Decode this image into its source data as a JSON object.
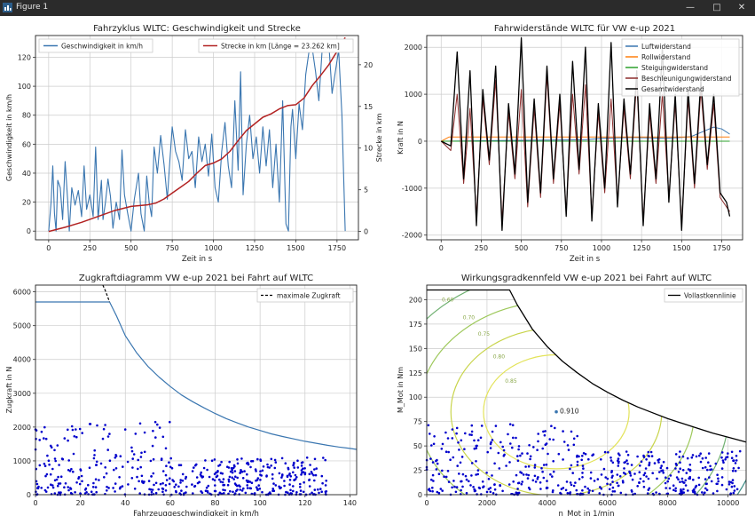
{
  "window": {
    "title": "Figure 1",
    "minimize": "—",
    "maximize": "□",
    "close": "✕"
  },
  "colors": {
    "blue": "#3a76b0",
    "red": "#b22222",
    "orange": "#ff7f0e",
    "green": "#2ca02c",
    "darkred": "#8c2c2c",
    "black": "#000000",
    "dots": "#0000cc",
    "grid": "#cccccc"
  },
  "chart_data": [
    {
      "id": "wltc",
      "type": "line",
      "title": "Fahrzyklus WLTC: Geschwindigkeit und Strecke",
      "xlabel": "Zeit in s",
      "ylabel": "Geschwindigkeit in km/h",
      "y2label": "Strecke in km",
      "xlim": [
        -80,
        1880
      ],
      "ylim": [
        -6,
        135
      ],
      "y2lim": [
        -1.0,
        23.5
      ],
      "xticks": [
        0,
        250,
        500,
        750,
        1000,
        1250,
        1500,
        1750
      ],
      "yticks": [
        0,
        20,
        40,
        60,
        80,
        100,
        120
      ],
      "y2ticks": [
        0,
        5,
        10,
        15,
        20
      ],
      "grid": true,
      "series": [
        {
          "name": "Geschwindigkeit in km/h",
          "axis": "left",
          "color": "#3a76b0",
          "x": [
            0,
            15,
            25,
            35,
            45,
            55,
            70,
            85,
            100,
            115,
            125,
            140,
            160,
            180,
            200,
            215,
            230,
            250,
            270,
            285,
            300,
            320,
            330,
            345,
            360,
            375,
            390,
            410,
            430,
            445,
            460,
            480,
            500,
            520,
            545,
            560,
            580,
            595,
            610,
            625,
            640,
            660,
            680,
            700,
            720,
            735,
            750,
            770,
            790,
            810,
            830,
            850,
            870,
            890,
            910,
            930,
            950,
            970,
            990,
            1010,
            1030,
            1050,
            1070,
            1090,
            1110,
            1130,
            1150,
            1165,
            1180,
            1200,
            1220,
            1240,
            1260,
            1280,
            1300,
            1320,
            1340,
            1360,
            1380,
            1400,
            1420,
            1440,
            1455,
            1470,
            1480,
            1500,
            1520,
            1540,
            1560,
            1580,
            1600,
            1620,
            1640,
            1660,
            1680,
            1700,
            1720,
            1740,
            1760,
            1780,
            1800
          ],
          "y": [
            0,
            20,
            45,
            12,
            0,
            35,
            30,
            8,
            48,
            22,
            0,
            30,
            18,
            28,
            10,
            45,
            15,
            25,
            10,
            58,
            8,
            35,
            8,
            20,
            36,
            24,
            2,
            20,
            8,
            56,
            25,
            12,
            0,
            22,
            40,
            12,
            0,
            38,
            20,
            10,
            58,
            40,
            66,
            46,
            22,
            48,
            72,
            55,
            48,
            35,
            70,
            50,
            55,
            30,
            65,
            48,
            60,
            38,
            67,
            30,
            20,
            55,
            75,
            45,
            30,
            90,
            42,
            110,
            25,
            60,
            80,
            50,
            65,
            40,
            72,
            45,
            70,
            30,
            60,
            20,
            90,
            5,
            0,
            72,
            84,
            50,
            88,
            70,
            108,
            124,
            126,
            110,
            90,
            125,
            128,
            130,
            95,
            110,
            125,
            80,
            0
          ]
        },
        {
          "name": "Strecke in km [Länge = 23.262 km]",
          "axis": "right",
          "color": "#b22222",
          "x": [
            0,
            100,
            200,
            300,
            400,
            500,
            550,
            600,
            650,
            700,
            750,
            800,
            850,
            900,
            950,
            1000,
            1050,
            1100,
            1150,
            1200,
            1250,
            1300,
            1350,
            1400,
            1450,
            1500,
            1550,
            1600,
            1650,
            1700,
            1750,
            1800
          ],
          "y": [
            0,
            0.5,
            1.1,
            1.8,
            2.5,
            3.0,
            3.1,
            3.2,
            3.4,
            3.9,
            4.6,
            5.3,
            6.0,
            7.0,
            7.9,
            8.2,
            8.7,
            9.6,
            10.9,
            12.1,
            12.9,
            13.7,
            14.1,
            14.7,
            15.1,
            15.2,
            16.0,
            17.5,
            18.7,
            20.0,
            21.6,
            23.262
          ]
        }
      ]
    },
    {
      "id": "widerstand",
      "type": "line",
      "title": "Fahrwiderstände WLTC für VW e-up 2021",
      "xlabel": "Zeit in s",
      "ylabel": "Kraft in N",
      "xlim": [
        -90,
        1880
      ],
      "ylim": [
        -2100,
        2250
      ],
      "xticks": [
        0,
        250,
        500,
        750,
        1000,
        1250,
        1500,
        1750
      ],
      "yticks": [
        -2000,
        -1000,
        0,
        1000,
        2000
      ],
      "grid": true,
      "series": [
        {
          "name": "Luftwiderstand",
          "color": "#3a76b0",
          "x": [
            0,
            300,
            600,
            900,
            1000,
            1200,
            1400,
            1500,
            1560,
            1700,
            1750,
            1800
          ],
          "y": [
            0,
            10,
            20,
            30,
            60,
            80,
            60,
            80,
            100,
            300,
            260,
            150
          ]
        },
        {
          "name": "Rollwiderstand",
          "color": "#ff7f0e",
          "x": [
            0,
            50,
            300,
            600,
            900,
            1200,
            1500,
            1800
          ],
          "y": [
            0,
            90,
            90,
            90,
            90,
            90,
            90,
            90
          ]
        },
        {
          "name": "Steigungwiderstand",
          "color": "#2ca02c",
          "x": [
            0,
            1800
          ],
          "y": [
            0,
            0
          ]
        },
        {
          "name": "Beschleunigungwiderstand",
          "color": "#8c2c2c",
          "x": [
            0,
            60,
            100,
            140,
            180,
            220,
            260,
            300,
            340,
            380,
            420,
            460,
            500,
            540,
            580,
            620,
            660,
            700,
            740,
            780,
            820,
            860,
            900,
            940,
            980,
            1020,
            1060,
            1100,
            1140,
            1180,
            1220,
            1260,
            1300,
            1340,
            1380,
            1420,
            1460,
            1500,
            1540,
            1580,
            1620,
            1660,
            1700,
            1740,
            1780,
            1800
          ],
          "y": [
            0,
            -200,
            1000,
            -900,
            700,
            -1600,
            900,
            -500,
            1300,
            -1700,
            600,
            -800,
            1100,
            -1400,
            700,
            -1200,
            1400,
            -900,
            800,
            -1500,
            1000,
            -700,
            1200,
            -1600,
            600,
            -1100,
            900,
            -1300,
            700,
            -800,
            1300,
            -1700,
            600,
            -900,
            1000,
            -1200,
            800,
            -1800,
            900,
            -1000,
            1100,
            -600,
            800,
            -1200,
            -1400,
            -1500
          ]
        },
        {
          "name": "Gesamtwiderstand",
          "color": "#000000",
          "x": [
            0,
            60,
            100,
            140,
            180,
            220,
            260,
            300,
            340,
            380,
            420,
            460,
            500,
            540,
            580,
            620,
            660,
            700,
            740,
            780,
            820,
            860,
            900,
            940,
            980,
            1020,
            1060,
            1100,
            1140,
            1180,
            1220,
            1260,
            1300,
            1340,
            1380,
            1420,
            1460,
            1500,
            1540,
            1580,
            1620,
            1660,
            1700,
            1740,
            1780,
            1800
          ],
          "y": [
            0,
            -100,
            1900,
            -800,
            1500,
            -1800,
            1100,
            -400,
            1600,
            -1900,
            800,
            -700,
            2200,
            -1300,
            900,
            -1100,
            1600,
            -800,
            1000,
            -1600,
            1700,
            -600,
            2000,
            -1700,
            800,
            -1000,
            2100,
            -1400,
            900,
            -700,
            1500,
            -1800,
            800,
            -800,
            2000,
            -1300,
            1000,
            -1900,
            1100,
            -900,
            1300,
            -500,
            1000,
            -1100,
            -1300,
            -1600
          ]
        }
      ]
    },
    {
      "id": "zugkraft",
      "type": "scatter",
      "title": "Zugkraftdiagramm VW e-up 2021 bei Fahrt auf WLTC",
      "xlabel": "Fahrzeuggeschwindigkeit in km/h",
      "ylabel": "Zugkraft in N",
      "xlim": [
        0,
        143
      ],
      "ylim": [
        0,
        6200
      ],
      "xticks": [
        0,
        20,
        40,
        60,
        80,
        100,
        120,
        140
      ],
      "yticks": [
        0,
        1000,
        2000,
        3000,
        4000,
        5000,
        6000
      ],
      "grid": true,
      "legend": [
        {
          "name": "maximale Zugkraft",
          "color": "#000000",
          "dash": true
        }
      ],
      "curve": {
        "x": [
          0,
          33,
          36,
          40,
          45,
          50,
          55,
          60,
          65,
          70,
          75,
          80,
          85,
          90,
          95,
          100,
          105,
          110,
          115,
          120,
          125,
          130,
          135,
          140,
          143
        ],
        "y": [
          5700,
          5700,
          5300,
          4700,
          4200,
          3800,
          3480,
          3200,
          2950,
          2750,
          2570,
          2400,
          2250,
          2120,
          2000,
          1900,
          1800,
          1720,
          1650,
          1580,
          1520,
          1460,
          1410,
          1370,
          1340
        ]
      },
      "curve_dashed": {
        "x": [
          30,
          31,
          32,
          33
        ],
        "y": [
          6200,
          6050,
          5880,
          5700
        ]
      }
    },
    {
      "id": "wirkungsgrad",
      "type": "scatter",
      "title": "Wirkungsgradkennfeld VW e-up 2021 bei Fahrt auf WLTC",
      "xlabel": "n_Mot in 1/min",
      "ylabel": "M_Mot in Nm",
      "xlim": [
        0,
        10600
      ],
      "ylim": [
        0,
        215
      ],
      "xticks": [
        0,
        2000,
        4000,
        6000,
        8000,
        10000
      ],
      "yticks": [
        0,
        25,
        50,
        75,
        100,
        125,
        150,
        175,
        200
      ],
      "grid": true,
      "legend": [
        {
          "name": "Vollastkennlinie",
          "color": "#000000"
        }
      ],
      "annotation": {
        "text": "0.910",
        "x": 4300,
        "y": 85
      },
      "vollast": {
        "x": [
          0,
          2750,
          3000,
          3500,
          4000,
          4500,
          5000,
          5500,
          6000,
          6500,
          7000,
          7500,
          8000,
          8500,
          9000,
          9500,
          10000,
          10600
        ],
        "y": [
          210,
          210,
          195,
          170,
          152,
          137,
          125,
          114,
          105,
          97,
          90,
          84,
          78,
          73,
          68,
          63,
          59,
          54
        ]
      },
      "contour_labels": [
        {
          "text": "0.60",
          "x": 500,
          "y": 198
        },
        {
          "text": "0.70",
          "x": 1200,
          "y": 180
        },
        {
          "text": "0.75",
          "x": 1700,
          "y": 163
        },
        {
          "text": "0.80",
          "x": 2200,
          "y": 140
        },
        {
          "text": "0.85",
          "x": 2600,
          "y": 115
        }
      ]
    }
  ]
}
